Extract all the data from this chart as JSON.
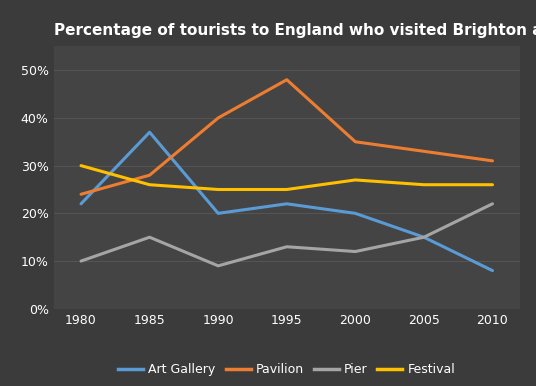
{
  "title": "Percentage of tourists to England who visited Brighton attractions",
  "years": [
    1980,
    1985,
    1990,
    1995,
    2000,
    2005,
    2010
  ],
  "series": {
    "Art Gallery": {
      "values": [
        22,
        37,
        20,
        22,
        20,
        15,
        8
      ],
      "color": "#5B9BD5"
    },
    "Pavilion": {
      "values": [
        24,
        28,
        40,
        48,
        35,
        33,
        31
      ],
      "color": "#ED7D31"
    },
    "Pier": {
      "values": [
        10,
        15,
        9,
        13,
        12,
        15,
        22
      ],
      "color": "#A5A5A5"
    },
    "Festival": {
      "values": [
        30,
        26,
        25,
        25,
        27,
        26,
        26
      ],
      "color": "#FFC000"
    }
  },
  "ylim": [
    0,
    55
  ],
  "yticks": [
    0,
    10,
    20,
    30,
    40,
    50
  ],
  "ytick_labels": [
    "0%",
    "10%",
    "20%",
    "30%",
    "40%",
    "50%"
  ],
  "background_color": "#3B3B3B",
  "plot_bg_color": "#444444",
  "grid_color": "#555555",
  "text_color": "#FFFFFF",
  "title_fontsize": 11,
  "tick_fontsize": 9,
  "legend_fontsize": 9,
  "linewidth": 2.2
}
